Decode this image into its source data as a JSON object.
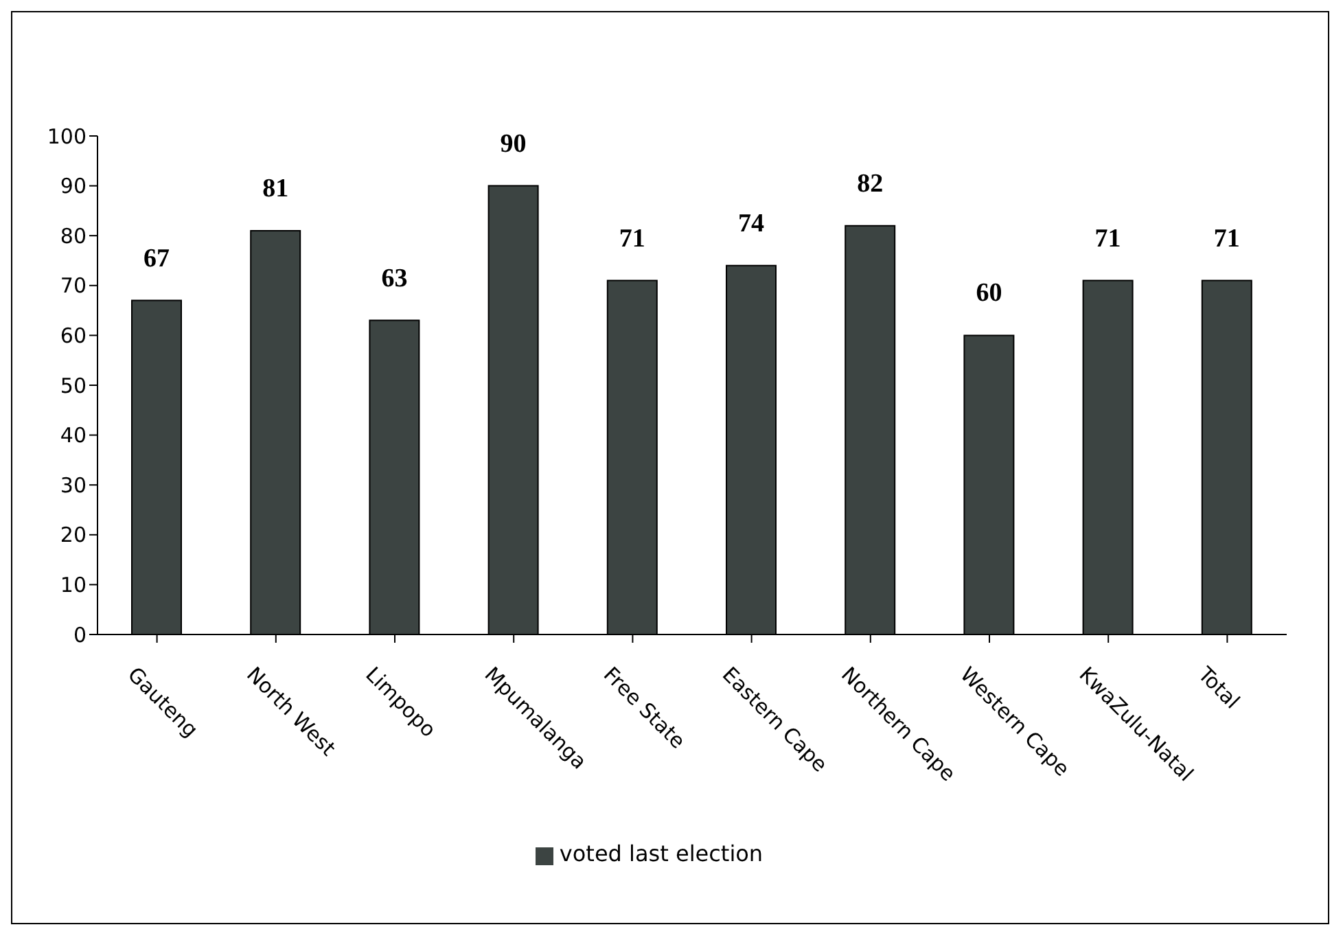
{
  "chart_data": {
    "type": "bar",
    "categories": [
      "Gauteng",
      "North West",
      "Limpopo",
      "Mpumalanga",
      "Free State",
      "Eastern Cape",
      "Northern Cape",
      "Western Cape",
      "KwaZulu-Natal",
      "Total"
    ],
    "series": [
      {
        "name": "voted last election",
        "color": "#3c4442",
        "values": [
          67,
          81,
          63,
          90,
          71,
          74,
          82,
          60,
          71,
          71
        ]
      }
    ],
    "ylim": [
      0,
      100
    ],
    "yticks": [
      0,
      10,
      20,
      30,
      40,
      50,
      60,
      70,
      80,
      90,
      100
    ],
    "data_labels": true,
    "grid": false,
    "legend": "bottom"
  }
}
